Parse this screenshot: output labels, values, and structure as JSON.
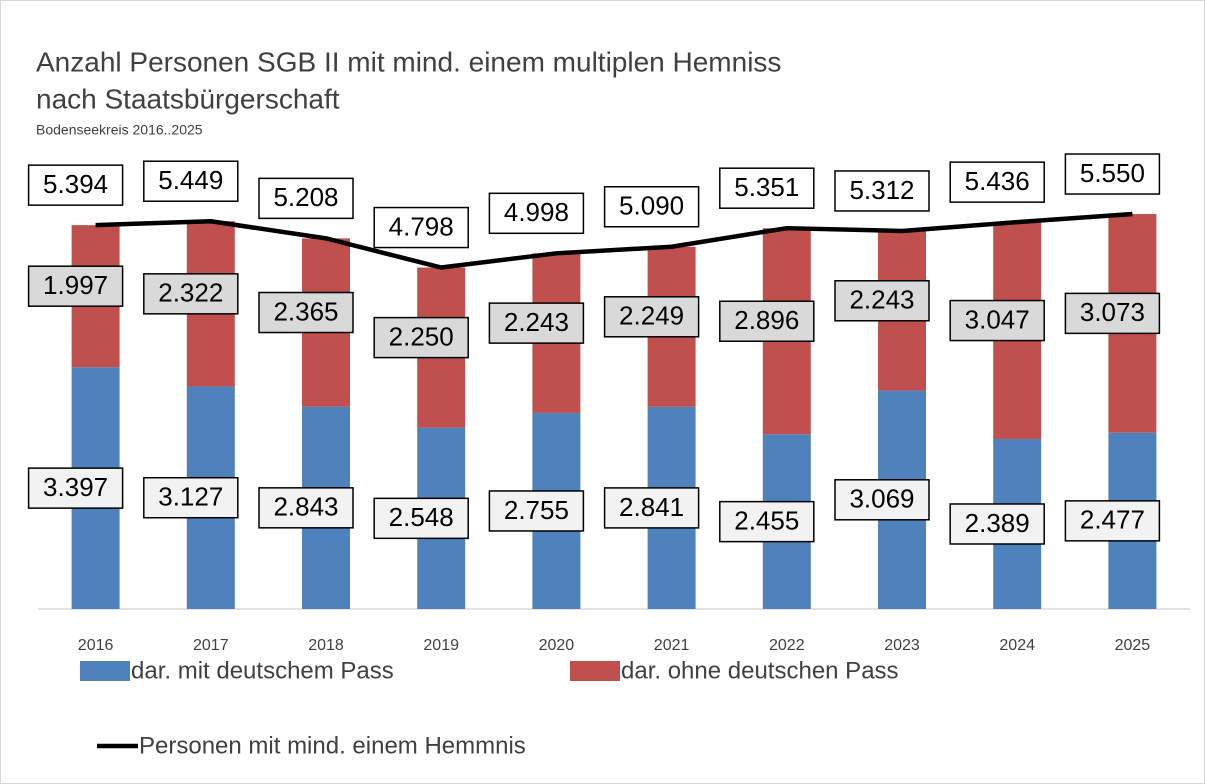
{
  "chart_data": {
    "type": "bar",
    "stacked": true,
    "title": "Anzahl Personen SGB II mit mind. einem multiplen Hemniss",
    "title_line2": "nach Staatsbürgerschaft",
    "subtitle": "Bodenseekreis 2016..2025",
    "categories": [
      "2016",
      "2017",
      "2018",
      "2019",
      "2020",
      "2021",
      "2022",
      "2023",
      "2024",
      "2025"
    ],
    "ylim": [
      0,
      6000
    ],
    "series": [
      {
        "name": "dar. mit deutschem Pass",
        "color": "#4f81bd",
        "values": [
          3397,
          3127,
          2843,
          2548,
          2755,
          2841,
          2455,
          3069,
          2389,
          2477
        ],
        "value_labels": [
          "3.397",
          "3.127",
          "2.843",
          "2.548",
          "2.755",
          "2.841",
          "2.455",
          "3.069",
          "2.389",
          "2.477"
        ]
      },
      {
        "name": "dar. ohne deutschen Pass",
        "color": "#c0504d",
        "values": [
          1997,
          2322,
          2365,
          2250,
          2243,
          2249,
          2896,
          2243,
          3047,
          3073
        ],
        "value_labels": [
          "1.997",
          "2.322",
          "2.365",
          "2.250",
          "2.243",
          "2.249",
          "2.896",
          "2.243",
          "3.047",
          "3.073"
        ]
      },
      {
        "name": "Personen mit mind. einem Hemmnis",
        "type": "line",
        "color": "#000000",
        "values": [
          5394,
          5449,
          5208,
          4798,
          4998,
          5090,
          5351,
          5312,
          5436,
          5550
        ],
        "value_labels": [
          "5.394",
          "5.449",
          "5.208",
          "4.798",
          "4.998",
          "5.090",
          "5.351",
          "5.312",
          "5.436",
          "5.550"
        ]
      }
    ]
  }
}
